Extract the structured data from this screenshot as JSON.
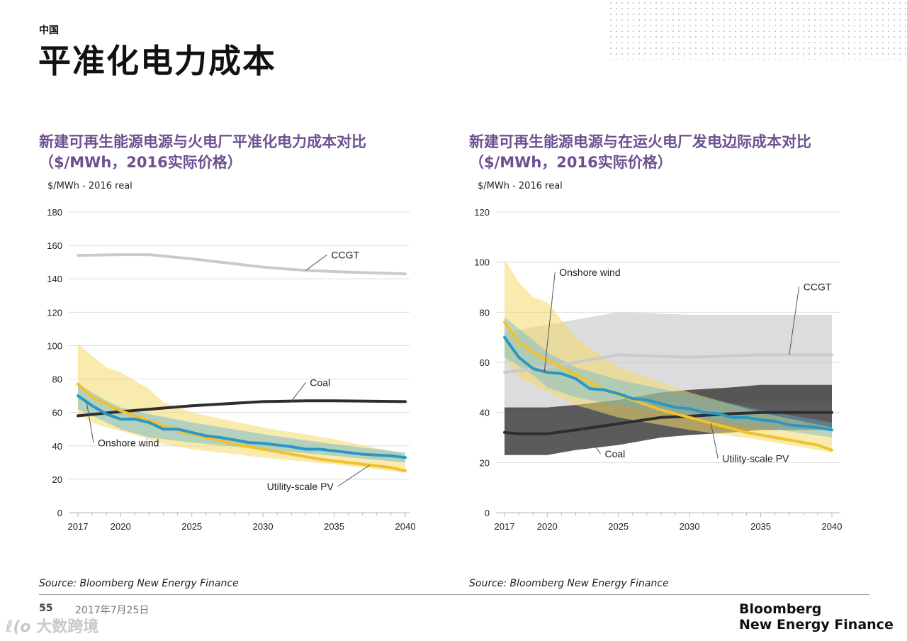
{
  "header": {
    "region": "中国",
    "title": "平准化电力成本"
  },
  "footer": {
    "page_number": "55",
    "date": "2017年7月25日",
    "brand_line1": "Bloomberg",
    "brand_line2": "New Energy Finance",
    "watermark_logo": "ℓ(o",
    "watermark_text": "大数跨境"
  },
  "colors": {
    "title_purple": "#6b5190",
    "ccgt_gray": "#cacacc",
    "coal_dark": "#2e2e30",
    "wind_blue": "#2a97c4",
    "pv_yellow": "#f2c12e",
    "pv_band": "#f4d86a",
    "grid": "#dcdcdc"
  },
  "chart_data": [
    {
      "type": "line",
      "title": "新建可再生能源电源与火电厂平准化电力成本对比",
      "subtitle": "（$/MWh，2016实际价格）",
      "ylabel": "$/MWh - 2016 real",
      "source": "Source: Bloomberg New Energy Finance",
      "ylim": [
        0,
        180
      ],
      "yticks": [
        0,
        20,
        40,
        60,
        80,
        100,
        120,
        140,
        160,
        180
      ],
      "xlim": [
        2017,
        2040
      ],
      "xticks": [
        2017,
        2020,
        2025,
        2030,
        2035,
        2040
      ],
      "series": [
        {
          "name": "CCGT",
          "key": "ccgt",
          "x": [
            2017,
            2020,
            2022,
            2025,
            2028,
            2030,
            2033,
            2036,
            2040
          ],
          "values": [
            154,
            154.5,
            154.5,
            152,
            149,
            147,
            145,
            144,
            143
          ]
        },
        {
          "name": "Coal",
          "key": "coal",
          "x": [
            2017,
            2020,
            2025,
            2030,
            2033,
            2035,
            2040
          ],
          "values": [
            58,
            60.5,
            64,
            66.5,
            67,
            67,
            66.5
          ]
        },
        {
          "name": "Onshore wind",
          "key": "wind",
          "x": [
            2017,
            2018,
            2019,
            2020,
            2021,
            2022,
            2023,
            2024,
            2025,
            2026,
            2027,
            2028,
            2029,
            2030,
            2031,
            2032,
            2033,
            2034,
            2035,
            2036,
            2037,
            2038,
            2039,
            2040
          ],
          "values": [
            70,
            64,
            59,
            56,
            56,
            54,
            50,
            50,
            48,
            46,
            45,
            43.5,
            42,
            41.5,
            40.5,
            39.5,
            38,
            38,
            37,
            36,
            35,
            34.5,
            34,
            33
          ]
        },
        {
          "name": "Utility-scale PV",
          "key": "pv",
          "x": [
            2017,
            2018,
            2019,
            2020,
            2021,
            2022,
            2023,
            2024,
            2025,
            2026,
            2027,
            2028,
            2029,
            2030,
            2031,
            2032,
            2033,
            2034,
            2035,
            2036,
            2037,
            2038,
            2039,
            2040
          ],
          "values": [
            77,
            69,
            65,
            61,
            58,
            55,
            52,
            49,
            47,
            45,
            43,
            41,
            39.5,
            38,
            36.5,
            35,
            33.5,
            32,
            31,
            30,
            29,
            28,
            27,
            25
          ]
        }
      ],
      "bands": [
        {
          "key": "pv",
          "x": [
            2017,
            2018,
            2019,
            2020,
            2022,
            2023,
            2025,
            2030,
            2035,
            2040
          ],
          "low": [
            59,
            54,
            51,
            49,
            44,
            41,
            38,
            33,
            29,
            24
          ],
          "high": [
            101,
            94,
            87,
            84,
            74,
            66,
            60,
            51,
            44,
            35
          ]
        },
        {
          "key": "wind",
          "x": [
            2017,
            2019,
            2020,
            2022,
            2025,
            2030,
            2035,
            2040
          ],
          "low": [
            62,
            54,
            50,
            45,
            42,
            38,
            34,
            30
          ],
          "high": [
            77,
            67,
            63,
            59,
            54,
            47,
            41,
            36
          ]
        }
      ],
      "annotations": [
        {
          "text": "CCGT",
          "series": "ccgt",
          "at_x": 2033,
          "at_y": 145
        },
        {
          "text": "Coal",
          "series": "coal",
          "at_x": 2032,
          "at_y": 67
        },
        {
          "text": "Onshore wind",
          "series": "wind",
          "at_x": 2017.6,
          "at_y": 58
        },
        {
          "text": "Utility-scale PV",
          "series": "pv",
          "at_x": 2037.5,
          "at_y": 30
        }
      ]
    },
    {
      "type": "line",
      "title": "新建可再生能源电源与在运火电厂发电边际成本对比",
      "subtitle": "（$/MWh，2016实际价格）",
      "ylabel": "$/MWh - 2016 real",
      "source": "Source: Bloomberg New Energy Finance",
      "ylim": [
        0,
        120
      ],
      "yticks": [
        0,
        20,
        40,
        60,
        80,
        100,
        120
      ],
      "xlim": [
        2017,
        2040
      ],
      "xticks": [
        2017,
        2020,
        2025,
        2030,
        2035,
        2040
      ],
      "series": [
        {
          "name": "CCGT",
          "key": "ccgt",
          "x": [
            2017,
            2020,
            2025,
            2030,
            2035,
            2040
          ],
          "values": [
            56,
            58,
            63,
            62,
            63,
            63
          ]
        },
        {
          "name": "Coal",
          "key": "coal",
          "x": [
            2017,
            2018,
            2020,
            2022,
            2025,
            2028,
            2030,
            2033,
            2035,
            2040
          ],
          "values": [
            32,
            31.5,
            31.5,
            33,
            35.5,
            38,
            38.5,
            39.5,
            40,
            40
          ]
        },
        {
          "name": "Onshore wind",
          "key": "wind",
          "x": [
            2017,
            2018,
            2019,
            2020,
            2021,
            2022,
            2023,
            2024,
            2025,
            2026,
            2027,
            2028,
            2029,
            2030,
            2031,
            2032,
            2033,
            2034,
            2035,
            2036,
            2037,
            2038,
            2039,
            2040
          ],
          "values": [
            70,
            62,
            57.5,
            56,
            55.5,
            53.5,
            49.5,
            49,
            47.5,
            45.5,
            45,
            43.5,
            42,
            41.5,
            40,
            39.5,
            38,
            38,
            37,
            36.5,
            35,
            34.5,
            34,
            33
          ]
        },
        {
          "name": "Utility-scale PV",
          "key": "pv",
          "x": [
            2017,
            2018,
            2019,
            2020,
            2021,
            2022,
            2023,
            2024,
            2025,
            2026,
            2027,
            2028,
            2029,
            2030,
            2031,
            2032,
            2033,
            2034,
            2035,
            2036,
            2037,
            2038,
            2039,
            2040
          ],
          "values": [
            76,
            68,
            64,
            61,
            58,
            55,
            52,
            49,
            47,
            45,
            43,
            41,
            39.5,
            38,
            36.5,
            35,
            33.5,
            32,
            31,
            30,
            29,
            28,
            27,
            25
          ]
        }
      ],
      "bands": [
        {
          "key": "ccgt",
          "x": [
            2017,
            2020,
            2025,
            2030,
            2035,
            2040
          ],
          "low": [
            41,
            41,
            45,
            44,
            44,
            44
          ],
          "high": [
            72,
            75,
            80,
            79,
            79,
            79
          ]
        },
        {
          "key": "coal",
          "x": [
            2017,
            2018,
            2020,
            2022,
            2025,
            2028,
            2030,
            2033,
            2035,
            2040
          ],
          "low": [
            23,
            23,
            23,
            25,
            27,
            30,
            31,
            32,
            33,
            33
          ],
          "high": [
            42,
            42,
            42,
            43,
            45,
            48,
            49,
            50,
            51,
            51
          ]
        },
        {
          "key": "pv",
          "x": [
            2017,
            2018,
            2019,
            2020,
            2022,
            2025,
            2030,
            2035,
            2040
          ],
          "low": [
            62,
            54,
            51,
            48,
            43,
            38,
            33,
            29,
            24
          ],
          "high": [
            101,
            92,
            86,
            84,
            70,
            58,
            48,
            40,
            34
          ]
        },
        {
          "key": "wind",
          "x": [
            2017,
            2019,
            2020,
            2022,
            2025,
            2030,
            2035,
            2040
          ],
          "low": [
            62,
            55,
            50,
            46,
            43,
            38,
            34,
            30
          ],
          "high": [
            78,
            69,
            64,
            58,
            53,
            47,
            41,
            36
          ]
        }
      ],
      "annotations": [
        {
          "text": "Onshore wind",
          "series": "wind",
          "at_x": 2019.8,
          "at_y": 56
        },
        {
          "text": "CCGT",
          "series": "ccgt",
          "at_x": 2037,
          "at_y": 63
        },
        {
          "text": "Coal",
          "series": "coal",
          "at_x": 2022.5,
          "at_y": 33
        },
        {
          "text": "Utility-scale PV",
          "series": "pv",
          "at_x": 2031.5,
          "at_y": 36
        }
      ]
    }
  ]
}
